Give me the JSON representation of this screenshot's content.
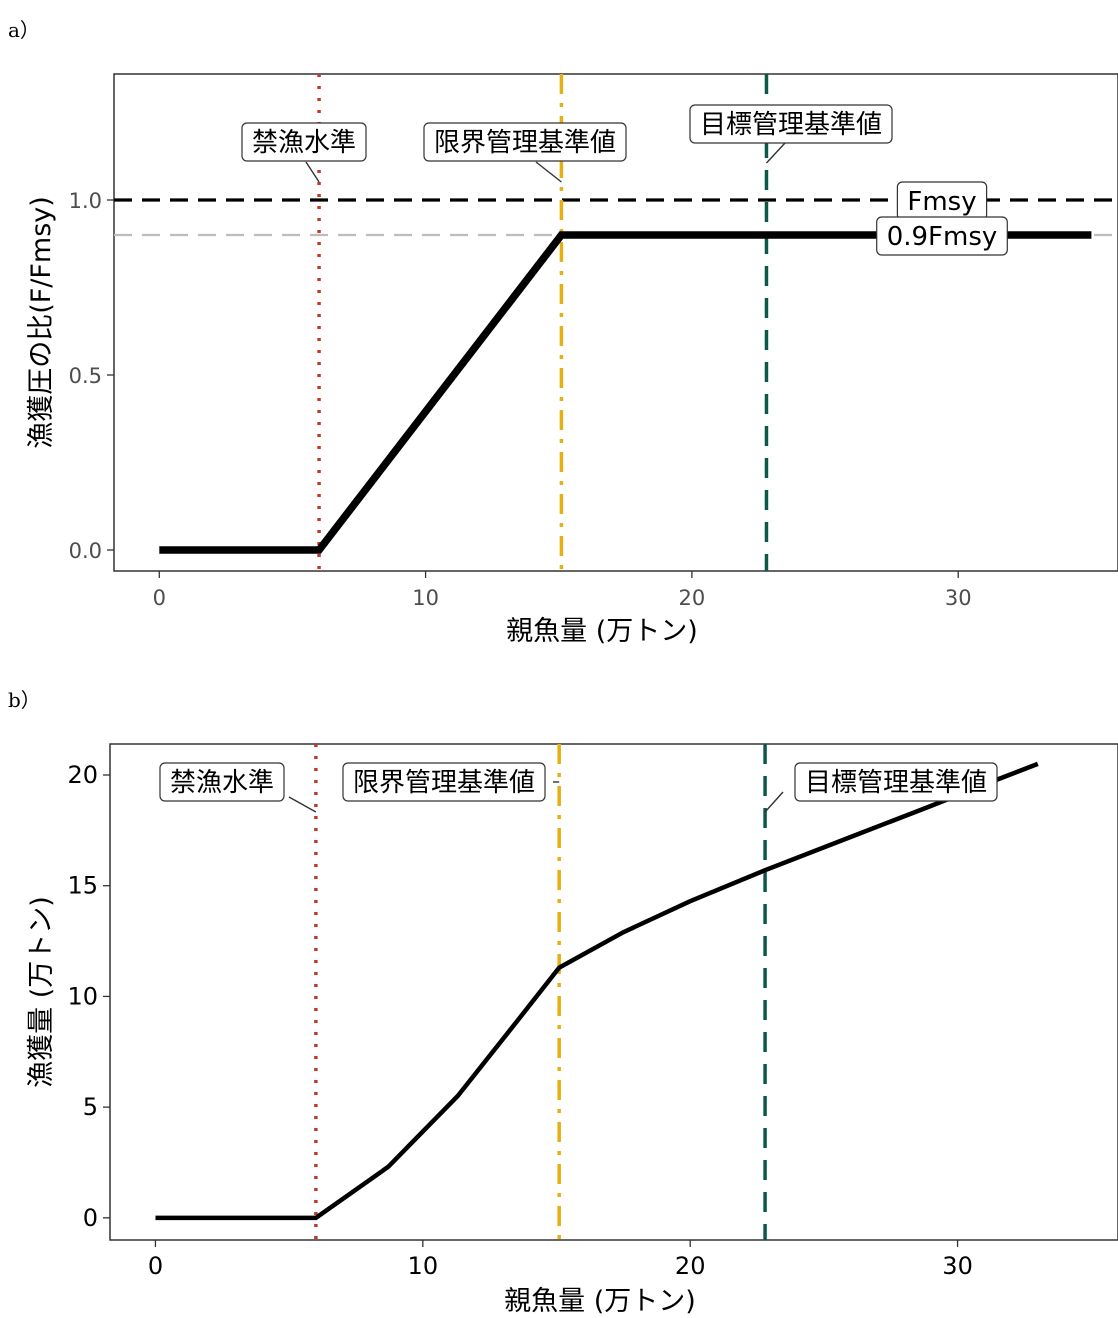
{
  "charts_meta": {
    "panel_a_label": "a）",
    "panel_b_label": "b）"
  },
  "chart_data": [
    {
      "type": "line",
      "xlabel": "親魚量 (万トン)",
      "ylabel": "漁獲圧の比(F/Fmsy)",
      "xlim": [
        -1.7,
        36
      ],
      "ylim": [
        -0.06,
        1.36
      ],
      "xticks": [
        0,
        10,
        20,
        30
      ],
      "yticks": [
        0.0,
        0.5,
        1.0
      ],
      "ytick_labels": [
        "0.0",
        "0.5",
        "1.0"
      ],
      "grid": false,
      "series": [
        {
          "x": [
            0,
            6.0,
            15.1,
            35.0
          ],
          "y": [
            0,
            0,
            0.9,
            0.9
          ]
        }
      ],
      "hlines": [
        {
          "y": 1.0,
          "label": "Fmsy",
          "color": "#000000",
          "style": "dashed"
        },
        {
          "y": 0.9,
          "label": "0.9Fmsy",
          "color": "#bdbdbd",
          "style": "dashed"
        }
      ],
      "vlines": [
        {
          "x": 6.0,
          "label": "禁漁水準",
          "color": "#c0392b",
          "style": "dotted"
        },
        {
          "x": 15.1,
          "label": "限界管理基準値",
          "color": "#e6b012",
          "style": "dashdot"
        },
        {
          "x": 22.8,
          "label": "目標管理基準値",
          "color": "#0b5a48",
          "style": "dashed"
        }
      ]
    },
    {
      "type": "line",
      "xlabel": "親魚量 (万トン)",
      "ylabel": "漁獲量 (万トン)",
      "xlim": [
        -1.7,
        36
      ],
      "ylim": [
        -1,
        21.4
      ],
      "xticks": [
        0,
        10,
        20,
        30
      ],
      "yticks": [
        0,
        5,
        10,
        15,
        20
      ],
      "ytick_labels": [
        "0",
        "5",
        "10",
        "15",
        "20"
      ],
      "grid": false,
      "series": [
        {
          "x": [
            0,
            6.0,
            8.7,
            11.3,
            13.6,
            15.1,
            17.5,
            20.0,
            22.8,
            26.0,
            29.0,
            31.5,
            33.0
          ],
          "y": [
            0,
            0,
            2.3,
            5.5,
            9.0,
            11.3,
            12.9,
            14.3,
            15.7,
            17.2,
            18.6,
            19.8,
            20.5
          ]
        }
      ],
      "vlines": [
        {
          "x": 6.0,
          "label": "禁漁水準",
          "color": "#c0392b",
          "style": "dotted"
        },
        {
          "x": 15.1,
          "label": "限界管理基準値",
          "color": "#e6b012",
          "style": "dashdot"
        },
        {
          "x": 22.8,
          "label": "目標管理基準値",
          "color": "#0b5a48",
          "style": "dashed"
        }
      ]
    }
  ]
}
